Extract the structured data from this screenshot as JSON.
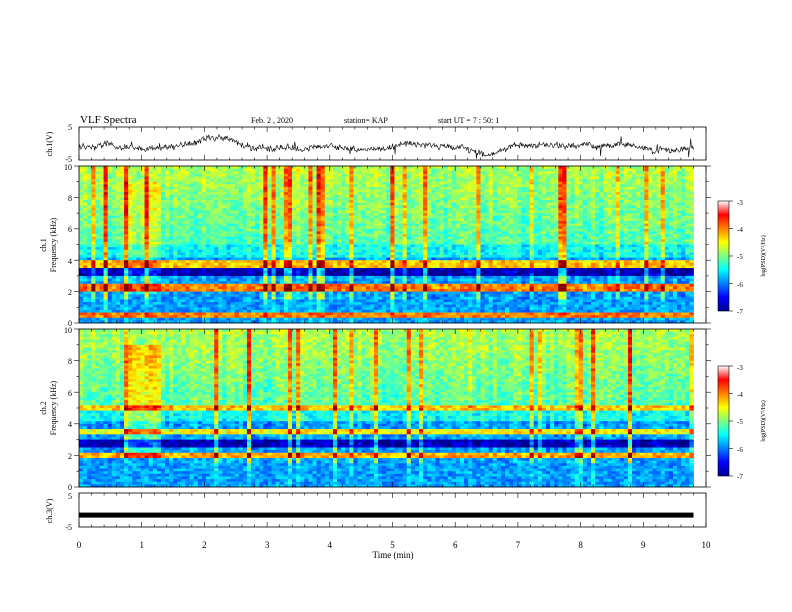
{
  "header": {
    "title": "VLF Spectra",
    "date": "Feb. 2 , 2020",
    "station": "station= KAP",
    "start": "start  UT =   7 : 50: 1"
  },
  "xaxis": {
    "label": "Time  (min)",
    "ticks": [
      "0",
      "1",
      "2",
      "3",
      "4",
      "5",
      "6",
      "7",
      "8",
      "9",
      "10"
    ],
    "range": [
      0,
      10
    ],
    "data_end": 9.8
  },
  "panels": {
    "ch1_waveform": {
      "ylabel": "ch.1(V)",
      "ticks": [
        "5",
        "-5"
      ],
      "range": [
        -5,
        5
      ]
    },
    "ch1_spectrogram": {
      "ylabel_line1": "ch.1",
      "ylabel_line2": "Frequency  (kHz)",
      "ticks": [
        "0",
        "2",
        "4",
        "6",
        "8",
        "10"
      ],
      "range": [
        0,
        10
      ],
      "colorbar": {
        "label": "log(PSD)(V²/Hz)",
        "ticks": [
          "-3",
          "-4",
          "-5",
          "-6",
          "-7"
        ],
        "range": [
          -7,
          -3
        ]
      }
    },
    "ch2_spectrogram": {
      "ylabel_line1": "ch.2",
      "ylabel_line2": "Frequency  (kHz)",
      "ticks": [
        "0",
        "2",
        "4",
        "6",
        "8",
        "10"
      ],
      "range": [
        0,
        10
      ],
      "colorbar": {
        "label": "log(PSD)(V²/Hz)",
        "ticks": [
          "-3",
          "-4",
          "-5",
          "-6",
          "-7"
        ],
        "range": [
          -7,
          -3
        ]
      }
    },
    "ch3_waveform": {
      "ylabel": "ch.3(V)",
      "ticks": [
        "5",
        "-5"
      ],
      "range": [
        -5,
        5
      ],
      "constant_value": -1.5
    }
  },
  "chart_data": [
    {
      "type": "line",
      "ylabel": "ch.1(V)",
      "xlabel": "Time  (min)",
      "xlim": [
        0,
        10
      ],
      "ylim": [
        -5,
        5
      ],
      "description_values": "noisy waveform oscillating roughly between -3 and +1 V around -1 V"
    },
    {
      "type": "heatmap",
      "ylabel": "Frequency  (kHz)",
      "xlim": [
        0,
        10
      ],
      "ylim": [
        0,
        10
      ],
      "colorbar_range": [
        -7,
        -3
      ],
      "features_khz": [
        {
          "band": 3.8,
          "level": -4.3
        },
        {
          "band": 2.2,
          "level": -4.0
        },
        {
          "band": 0.5,
          "level": -4.0
        },
        {
          "band": 3.2,
          "level": -6.8
        }
      ]
    },
    {
      "type": "heatmap",
      "ylabel": "Frequency  (kHz)",
      "xlim": [
        0,
        10
      ],
      "ylim": [
        0,
        10
      ],
      "colorbar_range": [
        -7,
        -3
      ],
      "features_khz": [
        {
          "band": 5.0,
          "level": -4.3
        },
        {
          "band": 3.5,
          "level": -4.5
        },
        {
          "band": 2.0,
          "level": -4.2
        },
        {
          "band": 2.7,
          "level": -6.8
        }
      ]
    },
    {
      "type": "line",
      "ylabel": "ch.3(V)",
      "xlim": [
        0,
        10
      ],
      "ylim": [
        -5,
        5
      ],
      "values_constant": -1.5
    }
  ]
}
